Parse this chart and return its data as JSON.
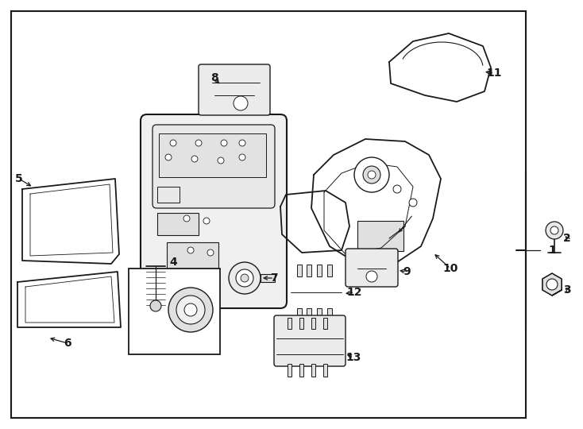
{
  "fig_width": 7.34,
  "fig_height": 5.4,
  "dpi": 100,
  "bg": "#ffffff",
  "lc": "#1a1a1a",
  "fc": "#f5f5f5",
  "fs": 10
}
